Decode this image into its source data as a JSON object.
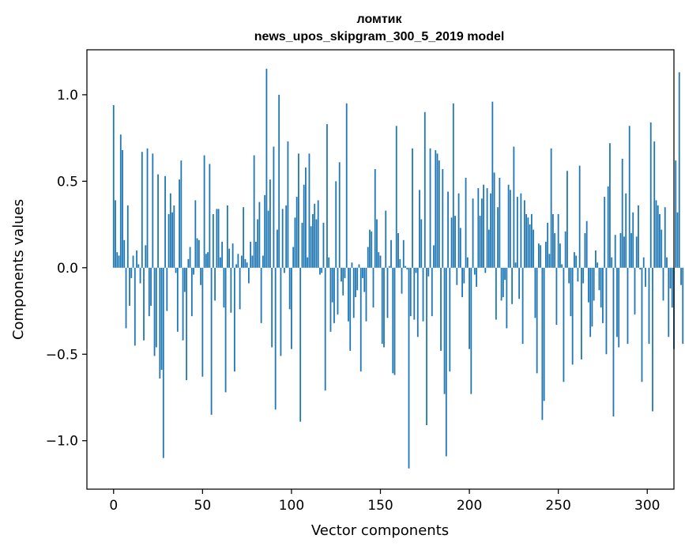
{
  "chart_data": {
    "type": "bar",
    "title": "ломтик",
    "subtitle": "news_upos_skipgram_300_5_2019 model",
    "xlabel": "Vector components",
    "ylabel": "Components values",
    "xlim": [
      -15,
      315
    ],
    "ylim": [
      -1.28,
      1.26
    ],
    "xticks": [
      0,
      50,
      100,
      150,
      200,
      250,
      300
    ],
    "xtick_labels": [
      "0",
      "50",
      "100",
      "150",
      "200",
      "250",
      "300"
    ],
    "yticks": [
      -1.0,
      -0.5,
      0.0,
      0.5,
      1.0
    ],
    "ytick_labels": [
      "−1.0",
      "−0.5",
      "0.0",
      "0.5",
      "1.0"
    ],
    "bar_color": "#1f77b4",
    "grid": false,
    "values": [
      0.94,
      0.39,
      0.09,
      0.07,
      0.77,
      0.68,
      0.16,
      -0.35,
      0.36,
      -0.22,
      -0.06,
      0.07,
      -0.45,
      0.1,
      0.02,
      -0.09,
      0.67,
      -0.42,
      0.13,
      0.69,
      -0.28,
      -0.22,
      0.66,
      -0.51,
      -0.46,
      0.54,
      -0.64,
      -0.59,
      -1.1,
      0.53,
      -0.25,
      0.31,
      0.43,
      0.32,
      0.36,
      -0.03,
      -0.37,
      0.51,
      0.62,
      -0.42,
      -0.14,
      -0.65,
      0.05,
      0.12,
      -0.28,
      -0.04,
      0.39,
      0.17,
      0.16,
      -0.1,
      -0.63,
      0.65,
      0.08,
      0.09,
      0.6,
      -0.85,
      0.31,
      -0.19,
      0.34,
      0.34,
      0.06,
      0.15,
      -0.23,
      -0.72,
      0.36,
      0.11,
      -0.26,
      0.14,
      -0.6,
      0.02,
      0.08,
      -0.24,
      0.07,
      0.35,
      0.05,
      0.03,
      -0.09,
      0.15,
      0.07,
      0.65,
      0.15,
      0.28,
      0.38,
      -0.32,
      0.07,
      0.42,
      1.15,
      0.33,
      0.51,
      -0.46,
      0.7,
      -0.82,
      0.22,
      1.0,
      -0.51,
      0.34,
      -0.03,
      0.36,
      0.73,
      -0.24,
      -0.47,
      0.12,
      0.29,
      0.41,
      0.66,
      -0.89,
      0.26,
      0.48,
      0.58,
      0.06,
      0.66,
      0.24,
      0.31,
      0.37,
      0.28,
      0.39,
      -0.04,
      -0.03,
      0.26,
      -0.71,
      0.83,
      0.06,
      -0.37,
      -0.2,
      -0.32,
      0.5,
      -0.27,
      0.61,
      -0.08,
      -0.16,
      -0.06,
      0.95,
      -0.31,
      -0.48,
      0.03,
      -0.29,
      -0.17,
      -0.13,
      0.02,
      -0.6,
      -0.06,
      -0.14,
      -0.31,
      0.12,
      0.22,
      0.21,
      -0.23,
      0.57,
      0.28,
      0.09,
      0.07,
      -0.44,
      -0.46,
      0.33,
      -0.29,
      0.01,
      0.16,
      -0.61,
      -0.62,
      0.82,
      0.2,
      0.05,
      -0.15,
      0.16,
      0.01,
      -0.01,
      -1.16,
      -0.28,
      0.69,
      -0.3,
      -0.03,
      -0.4,
      0.45,
      0.28,
      -0.31,
      0.9,
      -0.91,
      -0.05,
      0.69,
      -0.28,
      0.13,
      0.68,
      0.66,
      0.62,
      -0.48,
      0.57,
      -0.73,
      -1.09,
      0.44,
      -0.6,
      0.29,
      0.95,
      0.3,
      -0.1,
      0.43,
      0.23,
      -0.17,
      -0.09,
      0.52,
      0.06,
      -0.47,
      -0.73,
      0.4,
      -0.04,
      -0.11,
      0.46,
      0.3,
      0.4,
      0.48,
      -0.03,
      0.46,
      0.22,
      0.43,
      0.96,
      0.55,
      -0.3,
      0.35,
      0.52,
      -0.19,
      -0.17,
      -0.07,
      -0.35,
      0.48,
      0.45,
      -0.21,
      0.7,
      0.03,
      0.41,
      -0.18,
      0.43,
      -0.44,
      0.39,
      0.31,
      0.29,
      0.25,
      0.31,
      0.22,
      -0.29,
      -0.61,
      0.14,
      0.13,
      -0.88,
      -0.77,
      0.15,
      0.26,
      0.08,
      0.69,
      0.31,
      0.2,
      -0.33,
      0.31,
      0.14,
      0.02,
      -0.66,
      0.21,
      0.56,
      -0.09,
      -0.28,
      -0.56,
      0.09,
      0.07,
      -0.08,
      0.59,
      -0.53,
      -0.09,
      0.2,
      0.27,
      -0.2,
      -0.4,
      -0.34,
      -0.19,
      0.1,
      0.03,
      -0.13,
      -0.23,
      -0.32,
      0.41,
      -0.5,
      0.47,
      0.72,
      0.06,
      -0.86,
      0.19,
      -0.4,
      -0.46,
      0.2,
      0.63,
      0.18,
      0.43,
      -0.44,
      0.82,
      0.2,
      0.32,
      -0.27,
      0.18,
      0.36,
      -0.01,
      -0.66,
      0.06,
      -0.11,
      0.0,
      -0.44,
      0.84,
      -0.83,
      0.73,
      0.39,
      0.36,
      0.31,
      0.22,
      -0.19,
      0.35,
      0.06,
      -0.4,
      -0.12,
      -0.23,
      -0.47,
      0.62,
      0.32,
      1.13,
      -0.1,
      -0.44
    ]
  }
}
